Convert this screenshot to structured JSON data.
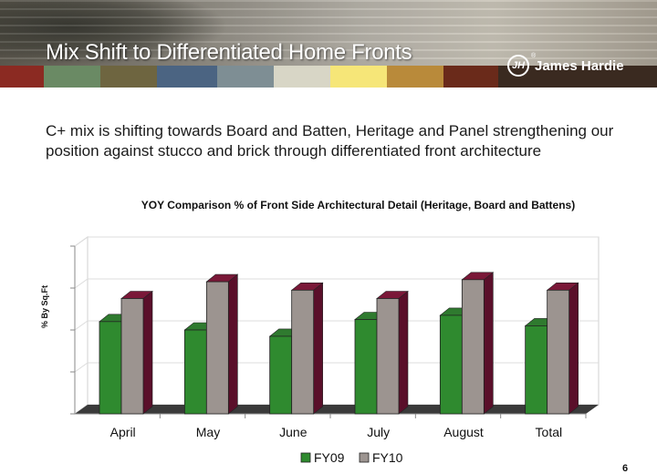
{
  "header": {
    "title": "Mix Shift to Differentiated Home Fronts",
    "logo_text": "James Hardie",
    "logo_mark": "JH",
    "logo_reg": "®",
    "stripe_colors": [
      "#8b2a22",
      "#6a8a64",
      "#6e6540",
      "#4b6482",
      "#7e8e94",
      "#d8d6c6",
      "#f6e678",
      "#b98a3a",
      "#6a2a1a",
      "#3a2a20",
      "#3a2a20",
      "#3a2a20"
    ]
  },
  "body": {
    "subtitle": "C+ mix is shifting towards Board and Batten, Heritage and Panel strengthening our position against stucco and brick through differentiated front architecture"
  },
  "chart_data": {
    "type": "bar",
    "title": "YOY Comparison % of Front Side Architectural Detail (Heritage, Board and Battens)",
    "xlabel": "",
    "ylabel": "% By Sq.Ft",
    "categories": [
      "April",
      "May",
      "June",
      "July",
      "August",
      "Total"
    ],
    "series": [
      {
        "name": "FY09",
        "values": [
          2.2,
          2.0,
          1.85,
          2.25,
          2.35,
          2.1
        ],
        "color": "#2f8a2f"
      },
      {
        "name": "FY10",
        "values": [
          2.75,
          3.15,
          2.95,
          2.75,
          3.2,
          2.95
        ],
        "color": "#9c9490"
      }
    ],
    "ylim": [
      0,
      4
    ],
    "y_tick_labels_shown": false,
    "grid": true,
    "legend": "bottom",
    "style": "3d"
  },
  "footer": {
    "page_number": "6"
  }
}
